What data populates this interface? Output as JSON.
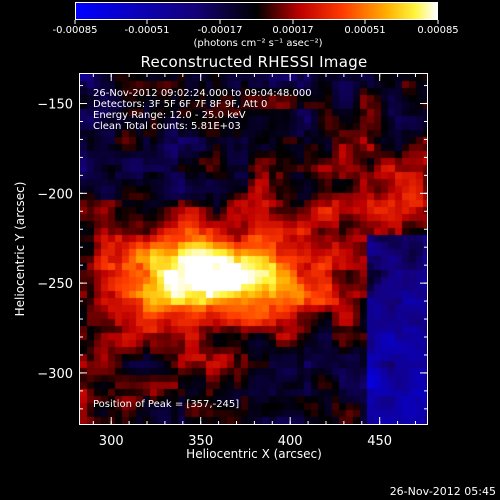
{
  "colorbar": {
    "tick_labels": [
      "-0.00085",
      "-0.00051",
      "-0.00017",
      "0.00017",
      "0.00051",
      "0.00085"
    ],
    "unit_label": "(photons cm⁻² s⁻¹ asec⁻²)"
  },
  "header": {
    "title": "Reconstructed RHESSI Image"
  },
  "annotations": {
    "time_range": "26-Nov-2012 09:02:24.000 to 09:04:48.000",
    "detectors": "Detectors: 3F 5F 6F 7F 8F 9F, Att 0",
    "energy_range": "Energy Range: 12.0 - 25.0 keV",
    "clean_counts": "Clean     Total counts: 5.81E+03",
    "peak_position": "Position of Peak = [357,-245]"
  },
  "footer": {
    "timestamp": "26-Nov-2012 05:45"
  },
  "chart_data": {
    "type": "heatmap",
    "title": "Reconstructed RHESSI Image",
    "xlabel": "Heliocentric X (arcsec)",
    "ylabel": "Heliocentric Y (arcsec)",
    "xlim": [
      282,
      477
    ],
    "ylim": [
      -329,
      -133
    ],
    "xticks": [
      300,
      350,
      400,
      450
    ],
    "yticks": [
      -150,
      -200,
      -250,
      -300
    ],
    "xtick_labels": [
      "300",
      "350",
      "400",
      "450"
    ],
    "ytick_labels": [
      "−150",
      "−200",
      "−250",
      "−300"
    ],
    "colorbar_range": [
      -0.00085,
      0.00085
    ],
    "colormap": "blue-black-red-yellow-white",
    "peak": [
      357,
      -245
    ],
    "grid": false
  }
}
